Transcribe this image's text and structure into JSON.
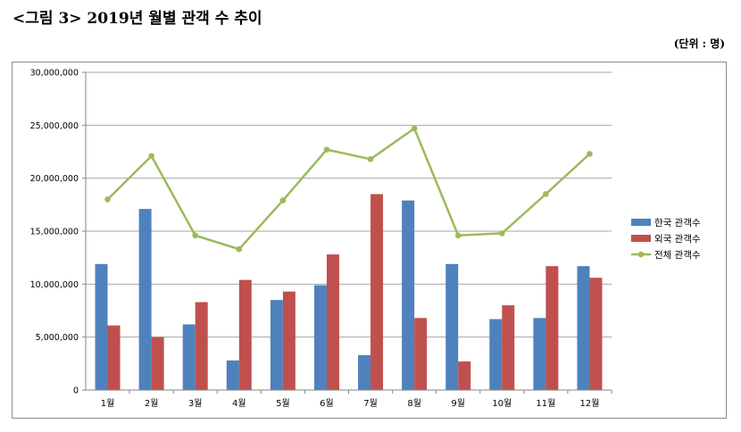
{
  "title": "<그림 3> 2019년 월별 관객 수 추이",
  "unit_note": "(단위 : 명)",
  "chart_data": {
    "type": "bar",
    "categories": [
      "1월",
      "2월",
      "3월",
      "4월",
      "5월",
      "6월",
      "7월",
      "8월",
      "9월",
      "10월",
      "11월",
      "12월"
    ],
    "series": [
      {
        "name": "한국 관객수",
        "type": "bar",
        "color": "#4f81bd",
        "values": [
          11900000,
          17100000,
          6200000,
          2800000,
          8500000,
          9900000,
          3300000,
          17900000,
          11900000,
          6700000,
          6800000,
          11700000
        ]
      },
      {
        "name": "외국 관객수",
        "type": "bar",
        "color": "#c0504d",
        "values": [
          6100000,
          5000000,
          8300000,
          10400000,
          9300000,
          12800000,
          18500000,
          6800000,
          2700000,
          8000000,
          11700000,
          10600000
        ]
      },
      {
        "name": "전체 관객수",
        "type": "line",
        "color": "#9bbb59",
        "values": [
          18000000,
          22100000,
          14600000,
          13300000,
          17900000,
          22700000,
          21800000,
          24700000,
          14600000,
          14800000,
          18500000,
          22300000
        ]
      }
    ],
    "ylim": [
      0,
      30000000
    ],
    "yticks": [
      "0",
      "5,000,000",
      "10,000,000",
      "15,000,000",
      "20,000,000",
      "25,000,000",
      "30,000,000"
    ],
    "grid": true,
    "legend_position": "right"
  }
}
